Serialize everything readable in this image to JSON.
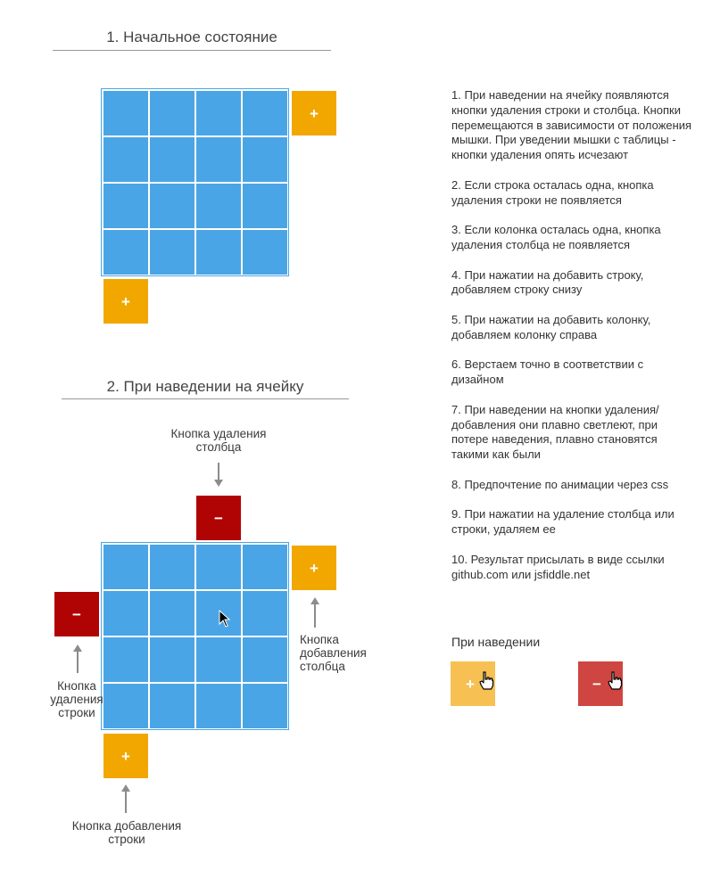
{
  "section1": {
    "title": "1. Начальное состояние"
  },
  "section2": {
    "title": "2. При наведении на ячейку"
  },
  "buttons": {
    "add_symbol": "+",
    "delete_symbol": "−"
  },
  "annotations": {
    "delete_column": [
      "Кнопка удаления",
      "столбца"
    ],
    "add_column": [
      "Кнопка",
      "добавления",
      "столбца"
    ],
    "delete_row": [
      "Кнопка",
      "удаления",
      "строки"
    ],
    "add_row": [
      "Кнопка добавления",
      "строки"
    ]
  },
  "notes": [
    "1. При наведении на ячейку появляются кнопки удаления строки и столбца. Кнопки перемещаются в зависимости от положения мышки. При уведении мышки с таблицы - кнопки удаления опять исчезают",
    "2. Если строка осталась одна, кнопка удаления строки не появляется",
    "3. Если колонка осталась одна, кнопка удаления столбца не появляется",
    "4. При нажатии на добавить строку, добавляем строку снизу",
    "5. При нажатии на добавить колонку, добавляем колонку справа",
    "6. Верстаем точно в соответствии с дизайном",
    "7. При наведении на кнопки удаления/добавления они плавно светлеют, при потере наведения, плавно становятся такими как были",
    "8. Предпочтение по анимации через css",
    "9. При нажатии на удаление столбца или строки, удаляем ее",
    "10. Результат присылать в виде ссылки github.com или jsfiddle.net"
  ],
  "hover": {
    "title": "При наведении"
  },
  "colors": {
    "cell": "#4aa5e6",
    "add_button": "#f2a700",
    "delete_button": "#b00404",
    "add_button_hover": "#f6c053",
    "delete_button_hover": "#cf4541"
  }
}
